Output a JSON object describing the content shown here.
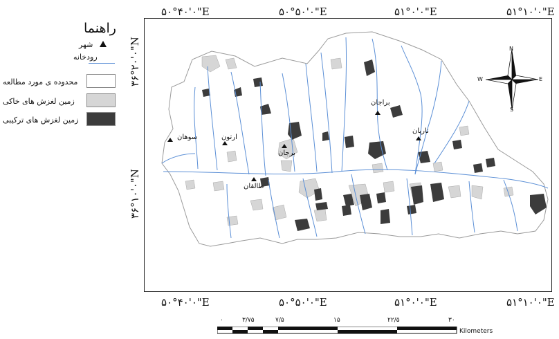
{
  "legend": {
    "title": "راهنما",
    "items": [
      {
        "label": "شهر",
        "symbol": "triangle"
      },
      {
        "label": "رودخانه",
        "symbol": "line",
        "color": "#5b8fd6"
      },
      {
        "label": "محدوده ی مورد مطالعه",
        "symbol": "box",
        "color": "#ffffff"
      },
      {
        "label": "زمین لغزش های خاکی",
        "symbol": "box",
        "color": "#d6d6d6"
      },
      {
        "label": "زمین لغزش های ترکیبی",
        "symbol": "box",
        "color": "#3c3c3c"
      }
    ]
  },
  "coords": {
    "top": [
      "۵۰°۴۰'۰\"E",
      "۵۰°۵۰'۰\"E",
      "۵۱°۰'۰\"E",
      "۵۱°۱۰'۰\"E"
    ],
    "bottom": [
      "۵۰°۴۰'۰\"E",
      "۵۰°۵۰'۰\"E",
      "۵۱°۰'۰\"E",
      "۵۱°۱۰'۰\"E"
    ],
    "left": [
      "۳۶°۲۰'۰\"N",
      "۳۶°۱۰'۰\"N"
    ]
  },
  "cities": [
    "سوهان",
    "ارتون",
    "طالقان",
    "برجان",
    "براجان",
    "ناریان"
  ],
  "north_arrow": {
    "N": "N",
    "S": "S",
    "E": "E",
    "W": "W"
  },
  "scale": {
    "ticks": [
      "۰",
      "۳/۷۵",
      "۷/۵",
      "۱۵",
      "۲۲/۵",
      "۳۰"
    ],
    "unit": "Kilometers"
  },
  "colors": {
    "river": "#5b8fd6",
    "soil_landslide": "#d6d6d6",
    "compound_landslide": "#3c3c3c",
    "study_area": "#ffffff"
  }
}
